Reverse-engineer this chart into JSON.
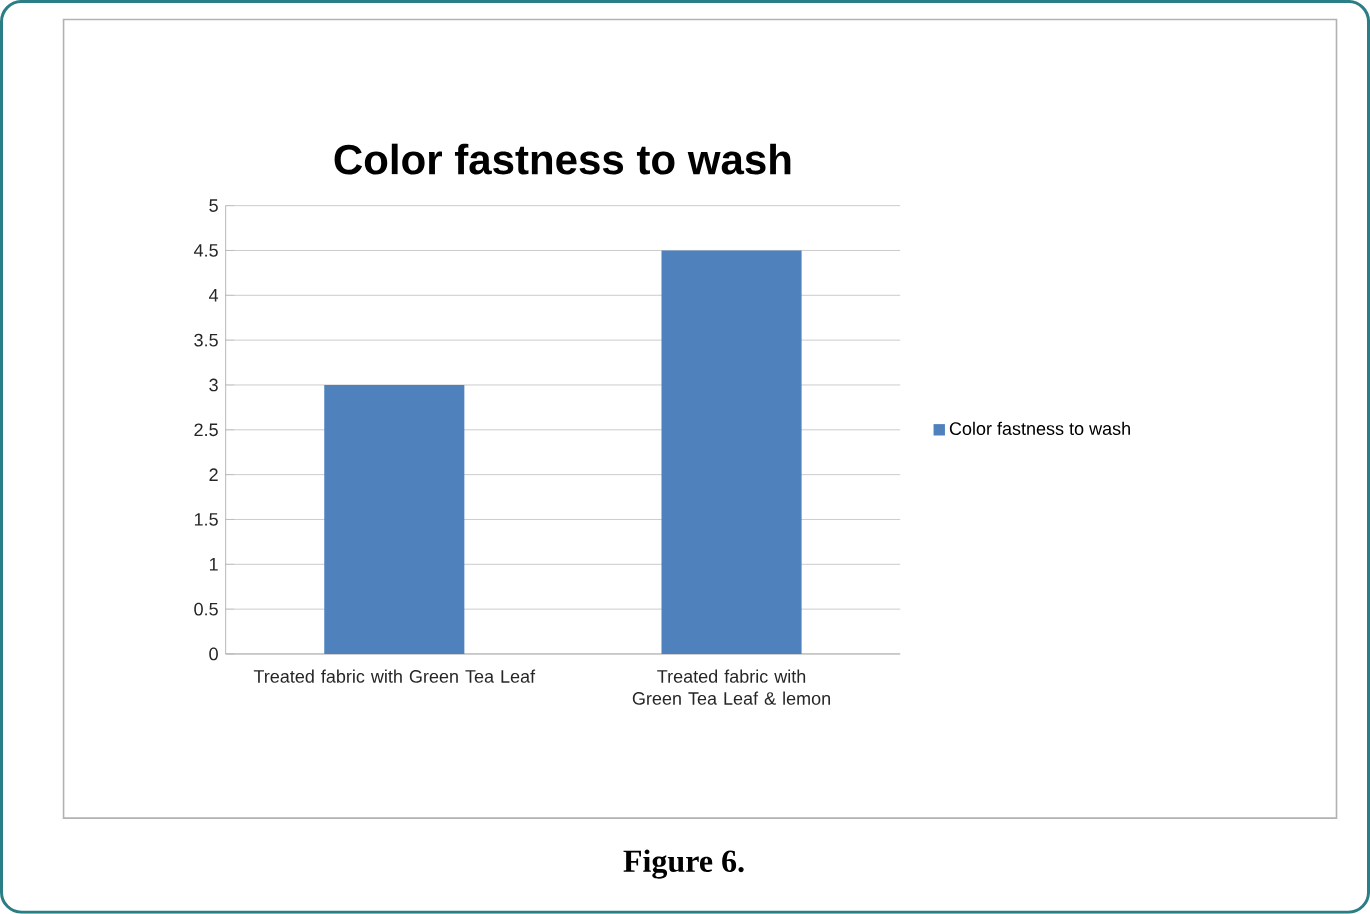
{
  "chart_data": {
    "type": "bar",
    "title": "Color fastness to wash",
    "categories": [
      "Treated fabric with Green Tea Leaf",
      "Treated fabric with Green Tea Leaf & lemon"
    ],
    "series": [
      {
        "name": "Color fastness to wash",
        "color": "#4f81bd",
        "values": [
          3,
          4.5
        ]
      }
    ],
    "ylim": [
      0,
      5
    ],
    "yticks": [
      0,
      0.5,
      1,
      1.5,
      2,
      2.5,
      3,
      3.5,
      4,
      4.5,
      5
    ],
    "grid": "y",
    "legend": "right",
    "annotations": [
      "Figure 6."
    ]
  }
}
